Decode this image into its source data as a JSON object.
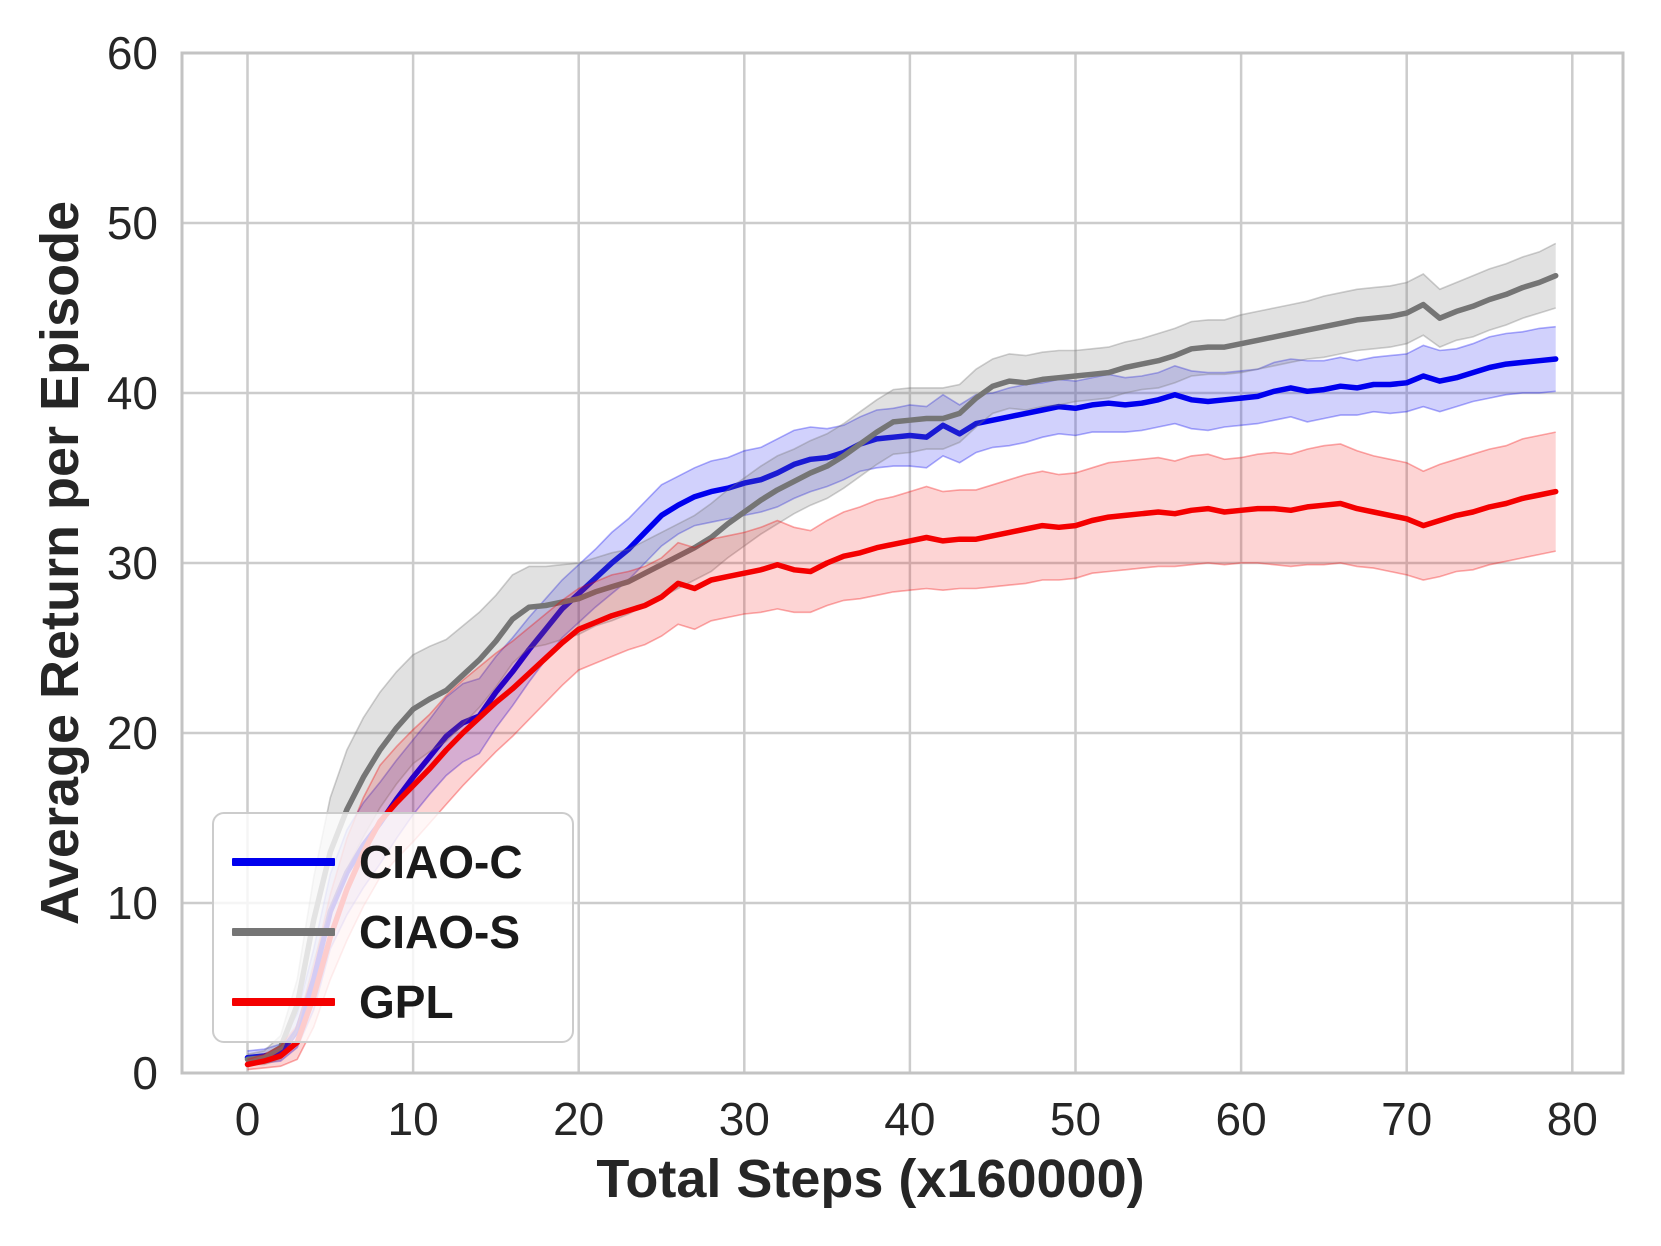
{
  "figure": {
    "background": "#ffffff",
    "grid_color": "#cccccc",
    "border_color": "#c3c3c3",
    "text_color": "#262626"
  },
  "legend": {
    "position": "lower-left",
    "items": [
      "CIAO-C",
      "CIAO-S",
      "GPL"
    ]
  },
  "chart_data": {
    "type": "line",
    "title": "",
    "xlabel": "Total Steps (x160000)",
    "ylabel": "Average Return per Episode",
    "xlim": [
      -4,
      83.2
    ],
    "ylim": [
      0,
      60
    ],
    "xticks": [
      0,
      10,
      20,
      30,
      40,
      50,
      60,
      70,
      80
    ],
    "yticks": [
      0,
      10,
      20,
      30,
      40,
      50,
      60
    ],
    "grid": true,
    "legend_position": "lower left",
    "x": [
      0,
      1,
      2,
      3,
      4,
      5,
      6,
      7,
      8,
      9,
      10,
      11,
      12,
      13,
      14,
      15,
      16,
      17,
      18,
      19,
      20,
      21,
      22,
      23,
      24,
      25,
      26,
      27,
      28,
      29,
      30,
      31,
      32,
      33,
      34,
      35,
      36,
      37,
      38,
      39,
      40,
      41,
      42,
      43,
      44,
      45,
      46,
      47,
      48,
      49,
      50,
      51,
      52,
      53,
      54,
      55,
      56,
      57,
      58,
      59,
      60,
      61,
      62,
      63,
      64,
      65,
      66,
      67,
      68,
      69,
      70,
      71,
      72,
      73,
      74,
      75,
      76,
      77,
      78,
      79
    ],
    "series": [
      {
        "name": "CIAO-C",
        "color": "#0000ee",
        "band_fill": "rgba(0,0,238,0.18)",
        "band_edge": "rgba(0,0,238,0.32)",
        "values": [
          0.9,
          1.0,
          1.2,
          2.5,
          5.5,
          9.5,
          11.8,
          13.4,
          14.7,
          16.1,
          17.4,
          18.6,
          19.8,
          20.6,
          21.0,
          22.4,
          23.6,
          24.9,
          26.1,
          27.3,
          28.2,
          29.1,
          30.0,
          30.8,
          31.8,
          32.8,
          33.4,
          33.9,
          34.2,
          34.4,
          34.7,
          34.9,
          35.3,
          35.8,
          36.1,
          36.2,
          36.5,
          37.0,
          37.3,
          37.4,
          37.5,
          37.4,
          38.1,
          37.6,
          38.2,
          38.4,
          38.6,
          38.8,
          39.0,
          39.2,
          39.1,
          39.3,
          39.4,
          39.3,
          39.4,
          39.6,
          39.9,
          39.6,
          39.5,
          39.6,
          39.7,
          39.8,
          40.1,
          40.3,
          40.1,
          40.2,
          40.4,
          40.3,
          40.5,
          40.5,
          40.6,
          41.0,
          40.7,
          40.9,
          41.2,
          41.5,
          41.7,
          41.8,
          41.9,
          42.0
        ],
        "band": [
          0.4,
          0.4,
          0.5,
          1.0,
          1.8,
          2.2,
          2.5,
          2.5,
          2.4,
          2.3,
          2.2,
          2.2,
          2.3,
          2.3,
          2.2,
          2.1,
          2.0,
          1.9,
          1.8,
          1.7,
          1.7,
          1.7,
          1.8,
          1.8,
          1.8,
          1.8,
          1.7,
          1.7,
          1.8,
          1.8,
          1.9,
          1.9,
          2.0,
          2.0,
          1.9,
          1.7,
          1.6,
          1.6,
          1.7,
          1.7,
          1.8,
          1.8,
          1.8,
          1.7,
          1.7,
          1.6,
          1.7,
          1.7,
          1.6,
          1.6,
          1.6,
          1.6,
          1.7,
          1.6,
          1.6,
          1.6,
          1.7,
          1.7,
          1.7,
          1.6,
          1.6,
          1.6,
          1.7,
          1.7,
          1.8,
          1.7,
          1.7,
          1.6,
          1.6,
          1.7,
          1.7,
          1.8,
          1.8,
          1.7,
          1.7,
          1.8,
          1.8,
          1.8,
          1.9,
          1.9
        ]
      },
      {
        "name": "CIAO-S",
        "color": "#757575",
        "band_fill": "rgba(117,117,117,0.22)",
        "band_edge": "rgba(117,117,117,0.35)",
        "values": [
          0.8,
          0.9,
          1.5,
          4.0,
          9.0,
          13.0,
          15.5,
          17.4,
          19.0,
          20.3,
          21.4,
          22.0,
          22.5,
          23.4,
          24.3,
          25.4,
          26.7,
          27.4,
          27.5,
          27.7,
          27.9,
          28.3,
          28.6,
          28.9,
          29.4,
          29.9,
          30.4,
          30.9,
          31.5,
          32.3,
          33.0,
          33.7,
          34.3,
          34.8,
          35.3,
          35.7,
          36.3,
          37.0,
          37.7,
          38.3,
          38.4,
          38.5,
          38.5,
          38.8,
          39.7,
          40.4,
          40.7,
          40.6,
          40.8,
          40.9,
          41.0,
          41.1,
          41.2,
          41.5,
          41.7,
          41.9,
          42.2,
          42.6,
          42.7,
          42.7,
          42.9,
          43.1,
          43.3,
          43.5,
          43.7,
          43.9,
          44.1,
          44.3,
          44.4,
          44.5,
          44.7,
          45.2,
          44.4,
          44.8,
          45.1,
          45.5,
          45.8,
          46.2,
          46.5,
          46.9
        ],
        "band": [
          0.3,
          0.4,
          0.7,
          1.5,
          2.5,
          3.2,
          3.5,
          3.5,
          3.4,
          3.3,
          3.2,
          3.1,
          3.0,
          2.9,
          2.8,
          2.7,
          2.6,
          2.4,
          2.3,
          2.2,
          2.1,
          2.0,
          2.0,
          1.9,
          1.9,
          1.9,
          1.9,
          1.9,
          2.0,
          2.0,
          2.0,
          2.0,
          2.0,
          1.9,
          1.9,
          1.9,
          1.9,
          1.9,
          1.9,
          1.9,
          1.9,
          1.8,
          1.8,
          1.7,
          1.7,
          1.6,
          1.6,
          1.6,
          1.6,
          1.6,
          1.5,
          1.5,
          1.5,
          1.5,
          1.5,
          1.6,
          1.6,
          1.6,
          1.6,
          1.6,
          1.7,
          1.7,
          1.7,
          1.7,
          1.7,
          1.8,
          1.8,
          1.8,
          1.8,
          1.8,
          1.8,
          1.8,
          1.7,
          1.7,
          1.8,
          1.8,
          1.8,
          1.8,
          1.8,
          1.9
        ]
      },
      {
        "name": "GPL",
        "color": "#f40000",
        "band_fill": "rgba(244,0,0,0.17)",
        "band_edge": "rgba(244,0,0,0.33)",
        "values": [
          0.5,
          0.7,
          1.0,
          1.8,
          4.5,
          8.0,
          10.8,
          13.0,
          14.8,
          15.9,
          16.9,
          17.9,
          19.0,
          20.0,
          20.9,
          21.8,
          22.6,
          23.5,
          24.4,
          25.3,
          26.1,
          26.5,
          26.9,
          27.2,
          27.5,
          28.0,
          28.8,
          28.5,
          29.0,
          29.2,
          29.4,
          29.6,
          29.9,
          29.6,
          29.5,
          30.0,
          30.4,
          30.6,
          30.9,
          31.1,
          31.3,
          31.5,
          31.3,
          31.4,
          31.4,
          31.6,
          31.8,
          32.0,
          32.2,
          32.1,
          32.2,
          32.5,
          32.7,
          32.8,
          32.9,
          33.0,
          32.9,
          33.1,
          33.2,
          33.0,
          33.1,
          33.2,
          33.2,
          33.1,
          33.3,
          33.4,
          33.5,
          33.2,
          33.0,
          32.8,
          32.6,
          32.2,
          32.5,
          32.8,
          33.0,
          33.3,
          33.5,
          33.8,
          34.0,
          34.2
        ],
        "band": [
          0.3,
          0.4,
          0.6,
          1.0,
          1.8,
          2.5,
          3.0,
          3.2,
          3.3,
          3.3,
          3.3,
          3.2,
          3.2,
          3.1,
          3.0,
          2.9,
          2.8,
          2.7,
          2.6,
          2.5,
          2.4,
          2.4,
          2.4,
          2.3,
          2.3,
          2.3,
          2.4,
          2.4,
          2.4,
          2.4,
          2.4,
          2.5,
          2.6,
          2.5,
          2.4,
          2.5,
          2.6,
          2.7,
          2.8,
          2.8,
          2.9,
          3.0,
          2.9,
          2.9,
          2.9,
          3.0,
          3.1,
          3.2,
          3.2,
          3.1,
          3.1,
          3.1,
          3.2,
          3.2,
          3.2,
          3.2,
          3.1,
          3.2,
          3.2,
          3.1,
          3.1,
          3.2,
          3.3,
          3.3,
          3.4,
          3.5,
          3.5,
          3.4,
          3.3,
          3.3,
          3.3,
          3.2,
          3.3,
          3.3,
          3.4,
          3.4,
          3.4,
          3.5,
          3.5,
          3.5
        ]
      }
    ]
  }
}
